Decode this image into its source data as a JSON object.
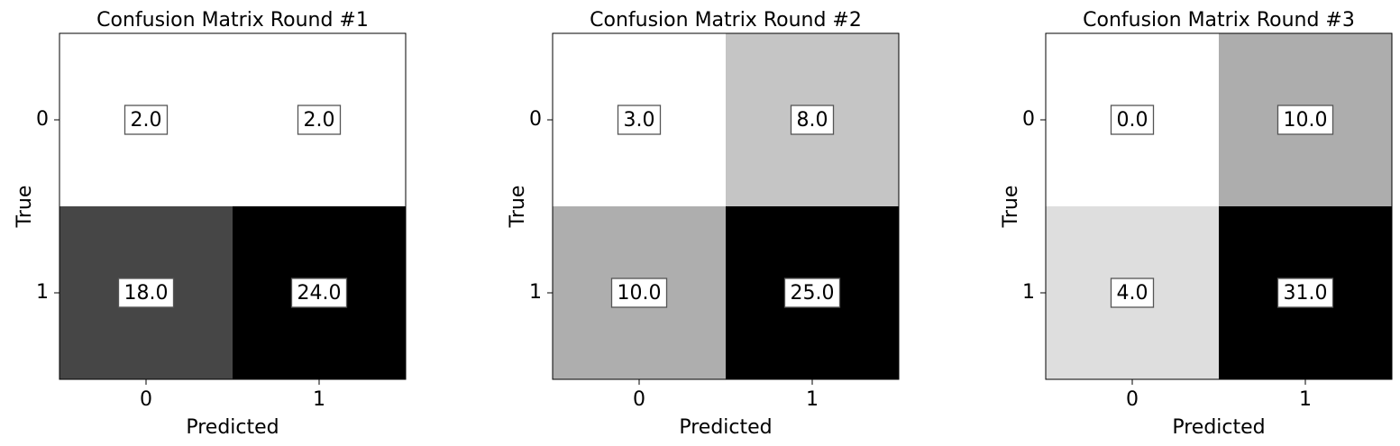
{
  "chart_data": [
    {
      "type": "heatmap",
      "title": "Confusion Matrix Round #1",
      "xlabel": "Predicted",
      "ylabel": "True",
      "x_ticks": [
        "0",
        "1"
      ],
      "y_ticks": [
        "0",
        "1"
      ],
      "values": [
        [
          2.0,
          2.0
        ],
        [
          18.0,
          24.0
        ]
      ],
      "value_labels": [
        [
          "2.0",
          "2.0"
        ],
        [
          "18.0",
          "24.0"
        ]
      ],
      "colormap": "gray_r"
    },
    {
      "type": "heatmap",
      "title": "Confusion Matrix Round #2",
      "xlabel": "Predicted",
      "ylabel": "True",
      "x_ticks": [
        "0",
        "1"
      ],
      "y_ticks": [
        "0",
        "1"
      ],
      "values": [
        [
          3.0,
          8.0
        ],
        [
          10.0,
          25.0
        ]
      ],
      "value_labels": [
        [
          "3.0",
          "8.0"
        ],
        [
          "10.0",
          "25.0"
        ]
      ],
      "colormap": "gray_r"
    },
    {
      "type": "heatmap",
      "title": "Confusion Matrix Round #3",
      "xlabel": "Predicted",
      "ylabel": "True",
      "x_ticks": [
        "0",
        "1"
      ],
      "y_ticks": [
        "0",
        "1"
      ],
      "values": [
        [
          0.0,
          10.0
        ],
        [
          4.0,
          31.0
        ]
      ],
      "value_labels": [
        [
          "0.0",
          "10.0"
        ],
        [
          "4.0",
          "31.0"
        ]
      ],
      "colormap": "gray_r"
    }
  ]
}
